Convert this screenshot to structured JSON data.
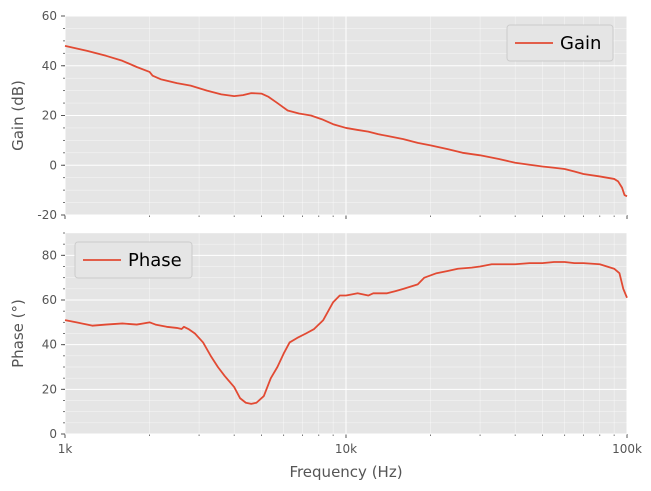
{
  "chart_data": [
    {
      "type": "line",
      "name": "gain-chart",
      "xscale": "log",
      "xlim": [
        1000,
        100000
      ],
      "ylim": [
        -20,
        60
      ],
      "xticks": [
        1000,
        10000,
        100000
      ],
      "xtick_labels": [
        "",
        "",
        ""
      ],
      "yticks": [
        -20,
        0,
        20,
        40,
        60
      ],
      "ytick_labels": [
        "-20",
        "0",
        "20",
        "40",
        "60"
      ],
      "ylabel": "Gain (dB)",
      "xlabel": "",
      "grid": true,
      "legend_position": "top-right",
      "series": [
        {
          "name": "Gain",
          "color": "#E24A33",
          "x": [
            1000,
            1200,
            1400,
            1600,
            1800,
            2000,
            2050,
            2200,
            2500,
            2800,
            3200,
            3600,
            4000,
            4300,
            4600,
            5000,
            5300,
            5700,
            6200,
            6800,
            7500,
            8200,
            9000,
            10000,
            11000,
            12000,
            13000,
            14000,
            16000,
            18000,
            20000,
            23000,
            26000,
            30000,
            35000,
            40000,
            45000,
            50000,
            55000,
            60000,
            65000,
            70000,
            80000,
            90000,
            93000,
            96000,
            98000,
            100000
          ],
          "y": [
            48,
            46,
            44,
            42,
            39.5,
            37.5,
            36,
            34.5,
            33,
            32,
            30,
            28.5,
            27.8,
            28.2,
            29,
            28.8,
            27.5,
            25,
            22,
            20.8,
            20,
            18.5,
            16.5,
            15,
            14.2,
            13.5,
            12.5,
            11.8,
            10.5,
            9,
            8,
            6.5,
            5,
            4,
            2.5,
            1,
            0.2,
            -0.5,
            -1,
            -1.5,
            -2.5,
            -3.5,
            -4.5,
            -5.5,
            -6.5,
            -9,
            -12,
            -12.5
          ]
        }
      ]
    },
    {
      "type": "line",
      "name": "phase-chart",
      "xscale": "log",
      "xlim": [
        1000,
        100000
      ],
      "ylim": [
        0,
        90
      ],
      "xticks": [
        1000,
        10000,
        100000
      ],
      "xtick_labels": [
        "1k",
        "10k",
        "100k"
      ],
      "yticks": [
        0,
        20,
        40,
        60,
        80
      ],
      "ytick_labels": [
        "0",
        "20",
        "40",
        "60",
        "80"
      ],
      "ylabel": "Phase (°)",
      "xlabel": "Frequency (Hz)",
      "grid": true,
      "legend_position": "top-left",
      "series": [
        {
          "name": "Phase",
          "color": "#E24A33",
          "x": [
            1000,
            1100,
            1250,
            1400,
            1600,
            1800,
            2000,
            2100,
            2300,
            2500,
            2600,
            2650,
            2750,
            2900,
            3100,
            3300,
            3500,
            3700,
            4000,
            4200,
            4400,
            4600,
            4800,
            5100,
            5400,
            5700,
            6000,
            6300,
            6700,
            7200,
            7700,
            8300,
            9000,
            9500,
            10000,
            10500,
            11000,
            12000,
            12500,
            13000,
            14000,
            15000,
            16000,
            18000,
            19000,
            21000,
            23000,
            25000,
            28000,
            30000,
            33000,
            36000,
            40000,
            45000,
            50000,
            55000,
            60000,
            65000,
            70000,
            80000,
            90000,
            94000,
            97000,
            100000
          ],
          "y": [
            51,
            50,
            48.5,
            49,
            49.5,
            49,
            50,
            49,
            48,
            47.5,
            47,
            48,
            47,
            45,
            41,
            35,
            30,
            26,
            21,
            16,
            14,
            13.5,
            14,
            17,
            25,
            30,
            36,
            41,
            43,
            45,
            47,
            51,
            59,
            62,
            62,
            62.5,
            63,
            62,
            63,
            63,
            63,
            64,
            65,
            67,
            70,
            72,
            73,
            74,
            74.5,
            75,
            76,
            76,
            76,
            76.5,
            76.5,
            77,
            77,
            76.5,
            76.5,
            76,
            74,
            72,
            65,
            61
          ]
        }
      ]
    }
  ]
}
